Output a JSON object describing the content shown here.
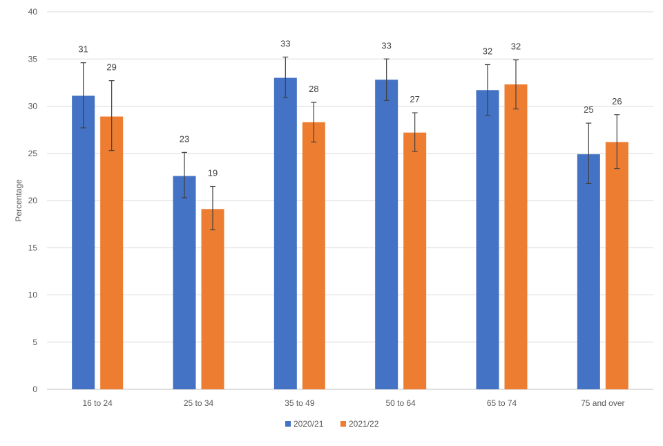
{
  "chart_data": {
    "type": "bar",
    "title": "",
    "xlabel": "",
    "ylabel": "Percentage",
    "ylim": [
      0,
      40
    ],
    "yticks": [
      0,
      5,
      10,
      15,
      20,
      25,
      30,
      35,
      40
    ],
    "grid": true,
    "legend_position": "bottom-center",
    "categories": [
      "16 to 24",
      "25 to 34",
      "35 to 49",
      "50 to 64",
      "65 to 74",
      "75 and over"
    ],
    "series": [
      {
        "name": "2020/21",
        "color": "#4472C4",
        "values": [
          31.1,
          22.6,
          33.0,
          32.8,
          31.7,
          24.9
        ],
        "labels": [
          "31",
          "23",
          "33",
          "33",
          "32",
          "25"
        ],
        "error_low": [
          27.7,
          20.3,
          30.9,
          30.6,
          29.0,
          21.8
        ],
        "error_high": [
          34.6,
          25.1,
          35.2,
          35.0,
          34.4,
          28.2
        ]
      },
      {
        "name": "2021/22",
        "color": "#ED7D31",
        "values": [
          28.9,
          19.1,
          28.3,
          27.2,
          32.3,
          26.2
        ],
        "labels": [
          "29",
          "19",
          "28",
          "27",
          "32",
          "26"
        ],
        "error_low": [
          25.3,
          16.9,
          26.2,
          25.2,
          29.7,
          23.4
        ],
        "error_high": [
          32.7,
          21.5,
          30.4,
          29.3,
          34.9,
          29.1
        ]
      }
    ]
  }
}
